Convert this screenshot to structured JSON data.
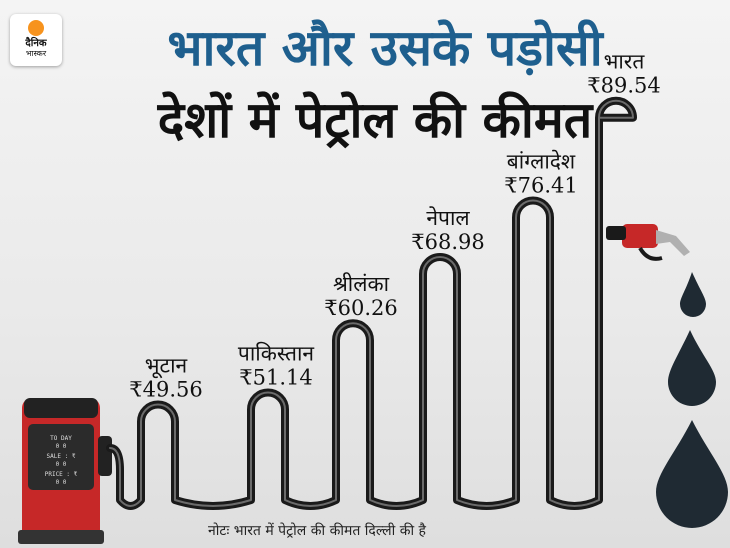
{
  "brand": {
    "line1": "दैनिक",
    "line2": "भास्कर"
  },
  "title_line1": "भारत और उसके पड़ोसी",
  "title_line2": "देशों में पेट्रोल की कीमत",
  "pump": {
    "row1": "TO DAY",
    "row2": "SALE : ₹",
    "row3": "PRICE : ₹",
    "digits": "0 0"
  },
  "note": "नोटः भारत में पेट्रोल की कीमत दिल्ली की है",
  "colors": {
    "title_blue": "#1e5f8e",
    "pump_red": "#c62828",
    "hose": "#1a1a1a"
  },
  "chart_data": {
    "type": "bar",
    "title": "भारत और उसके पड़ोसी देशों में पेट्रोल की कीमत",
    "categories": [
      "भूटान",
      "पाकिस्तान",
      "श्रीलंका",
      "नेपाल",
      "बांग्लादेश",
      "भारत"
    ],
    "values": [
      49.56,
      51.14,
      60.26,
      68.98,
      76.41,
      89.54
    ],
    "value_labels": [
      "₹49.56",
      "₹51.14",
      "₹60.26",
      "₹68.98",
      "₹76.41",
      "₹89.54"
    ],
    "unit": "₹"
  }
}
